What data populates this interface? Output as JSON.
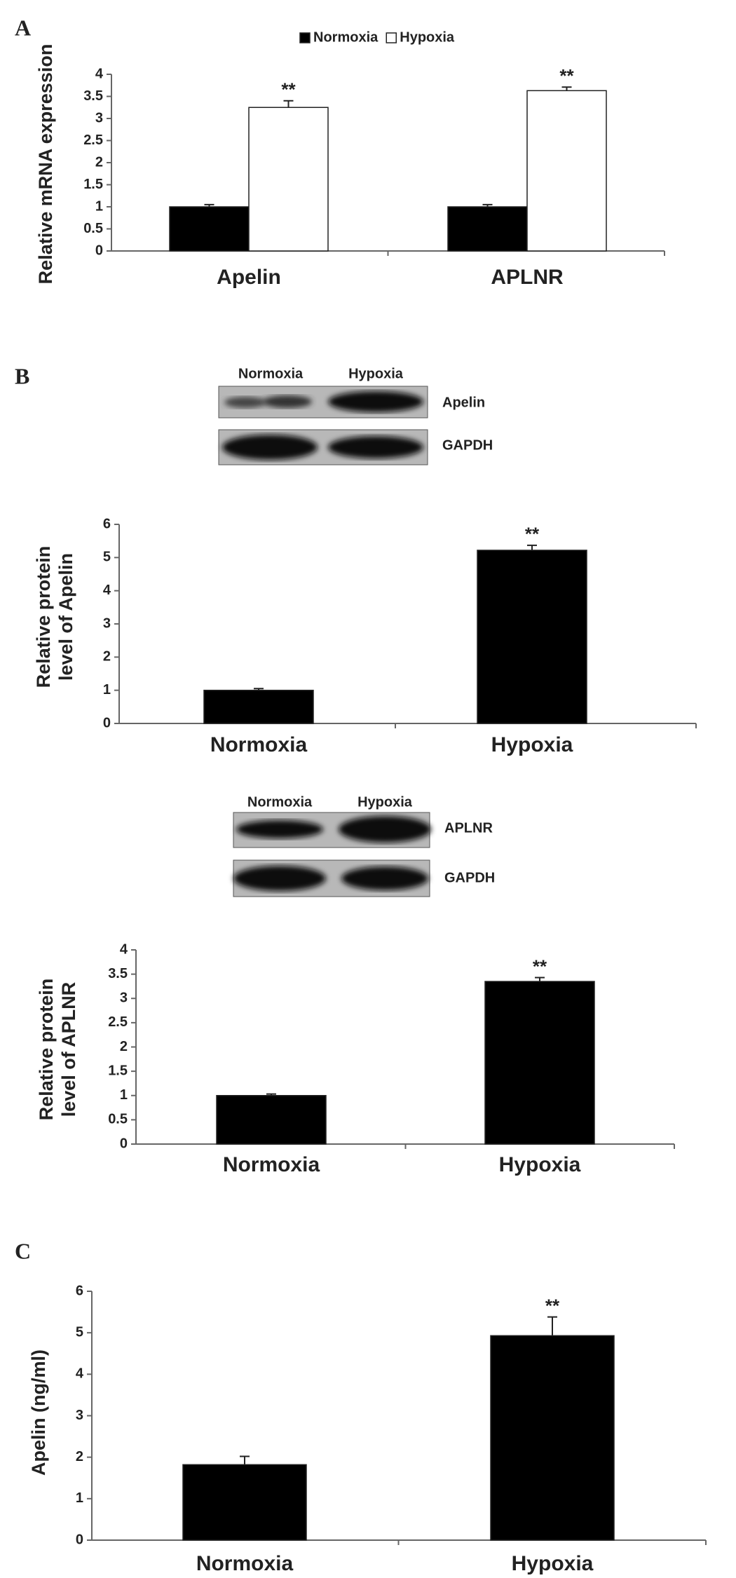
{
  "panels": [
    "A",
    "B",
    "C"
  ],
  "blots": [
    {
      "lanes": [
        "Normoxia",
        "Hypoxia"
      ],
      "rows": [
        "Apelin",
        "GAPDH"
      ]
    },
    {
      "lanes": [
        "Normoxia",
        "Hypoxia"
      ],
      "rows": [
        "APLNR",
        "GAPDH"
      ]
    }
  ],
  "chart_data": [
    {
      "type": "bar",
      "y_label": "Relative mRNA expression",
      "categories": [
        "Apelin",
        "APLNR"
      ],
      "series": [
        {
          "name": "Normoxia",
          "color": "#000000",
          "values": [
            1,
            1
          ],
          "errors": [
            0.05,
            0.05
          ],
          "significance": [
            null,
            null
          ]
        },
        {
          "name": "Hypoxia",
          "color": "#ffffff",
          "values": [
            3.25,
            3.63
          ],
          "errors": [
            0.15,
            0.08
          ],
          "significance": [
            "**",
            "**"
          ]
        }
      ],
      "ylim": [
        0,
        4
      ],
      "yticks": [
        0,
        0.5,
        1,
        1.5,
        2,
        2.5,
        3,
        3.5,
        4
      ]
    },
    {
      "type": "bar",
      "y_label": [
        "Relative protein",
        "level of Apelin"
      ],
      "categories": [
        "Normoxia",
        "Hypoxia"
      ],
      "values": [
        1,
        5.22
      ],
      "errors": [
        0.05,
        0.15
      ],
      "significance": [
        null,
        "**"
      ],
      "color": "#000000",
      "ylim": [
        0,
        6
      ],
      "yticks": [
        0,
        1,
        2,
        3,
        4,
        5,
        6
      ]
    },
    {
      "type": "bar",
      "y_label": [
        "Relative protein",
        "level of APLNR"
      ],
      "categories": [
        "Normoxia",
        "Hypoxia"
      ],
      "values": [
        1,
        3.35
      ],
      "errors": [
        0.03,
        0.08
      ],
      "significance": [
        null,
        "**"
      ],
      "color": "#000000",
      "ylim": [
        0,
        4
      ],
      "yticks": [
        0,
        0.5,
        1,
        1.5,
        2,
        2.5,
        3,
        3.5,
        4
      ]
    },
    {
      "type": "bar",
      "y_label": "Apelin (ng/ml)",
      "categories": [
        "Normoxia",
        "Hypoxia"
      ],
      "values": [
        1.82,
        4.93
      ],
      "errors": [
        0.2,
        0.45
      ],
      "significance": [
        null,
        "**"
      ],
      "color": "#000000",
      "ylim": [
        0,
        6
      ],
      "yticks": [
        0,
        1,
        2,
        3,
        4,
        5,
        6
      ]
    }
  ]
}
